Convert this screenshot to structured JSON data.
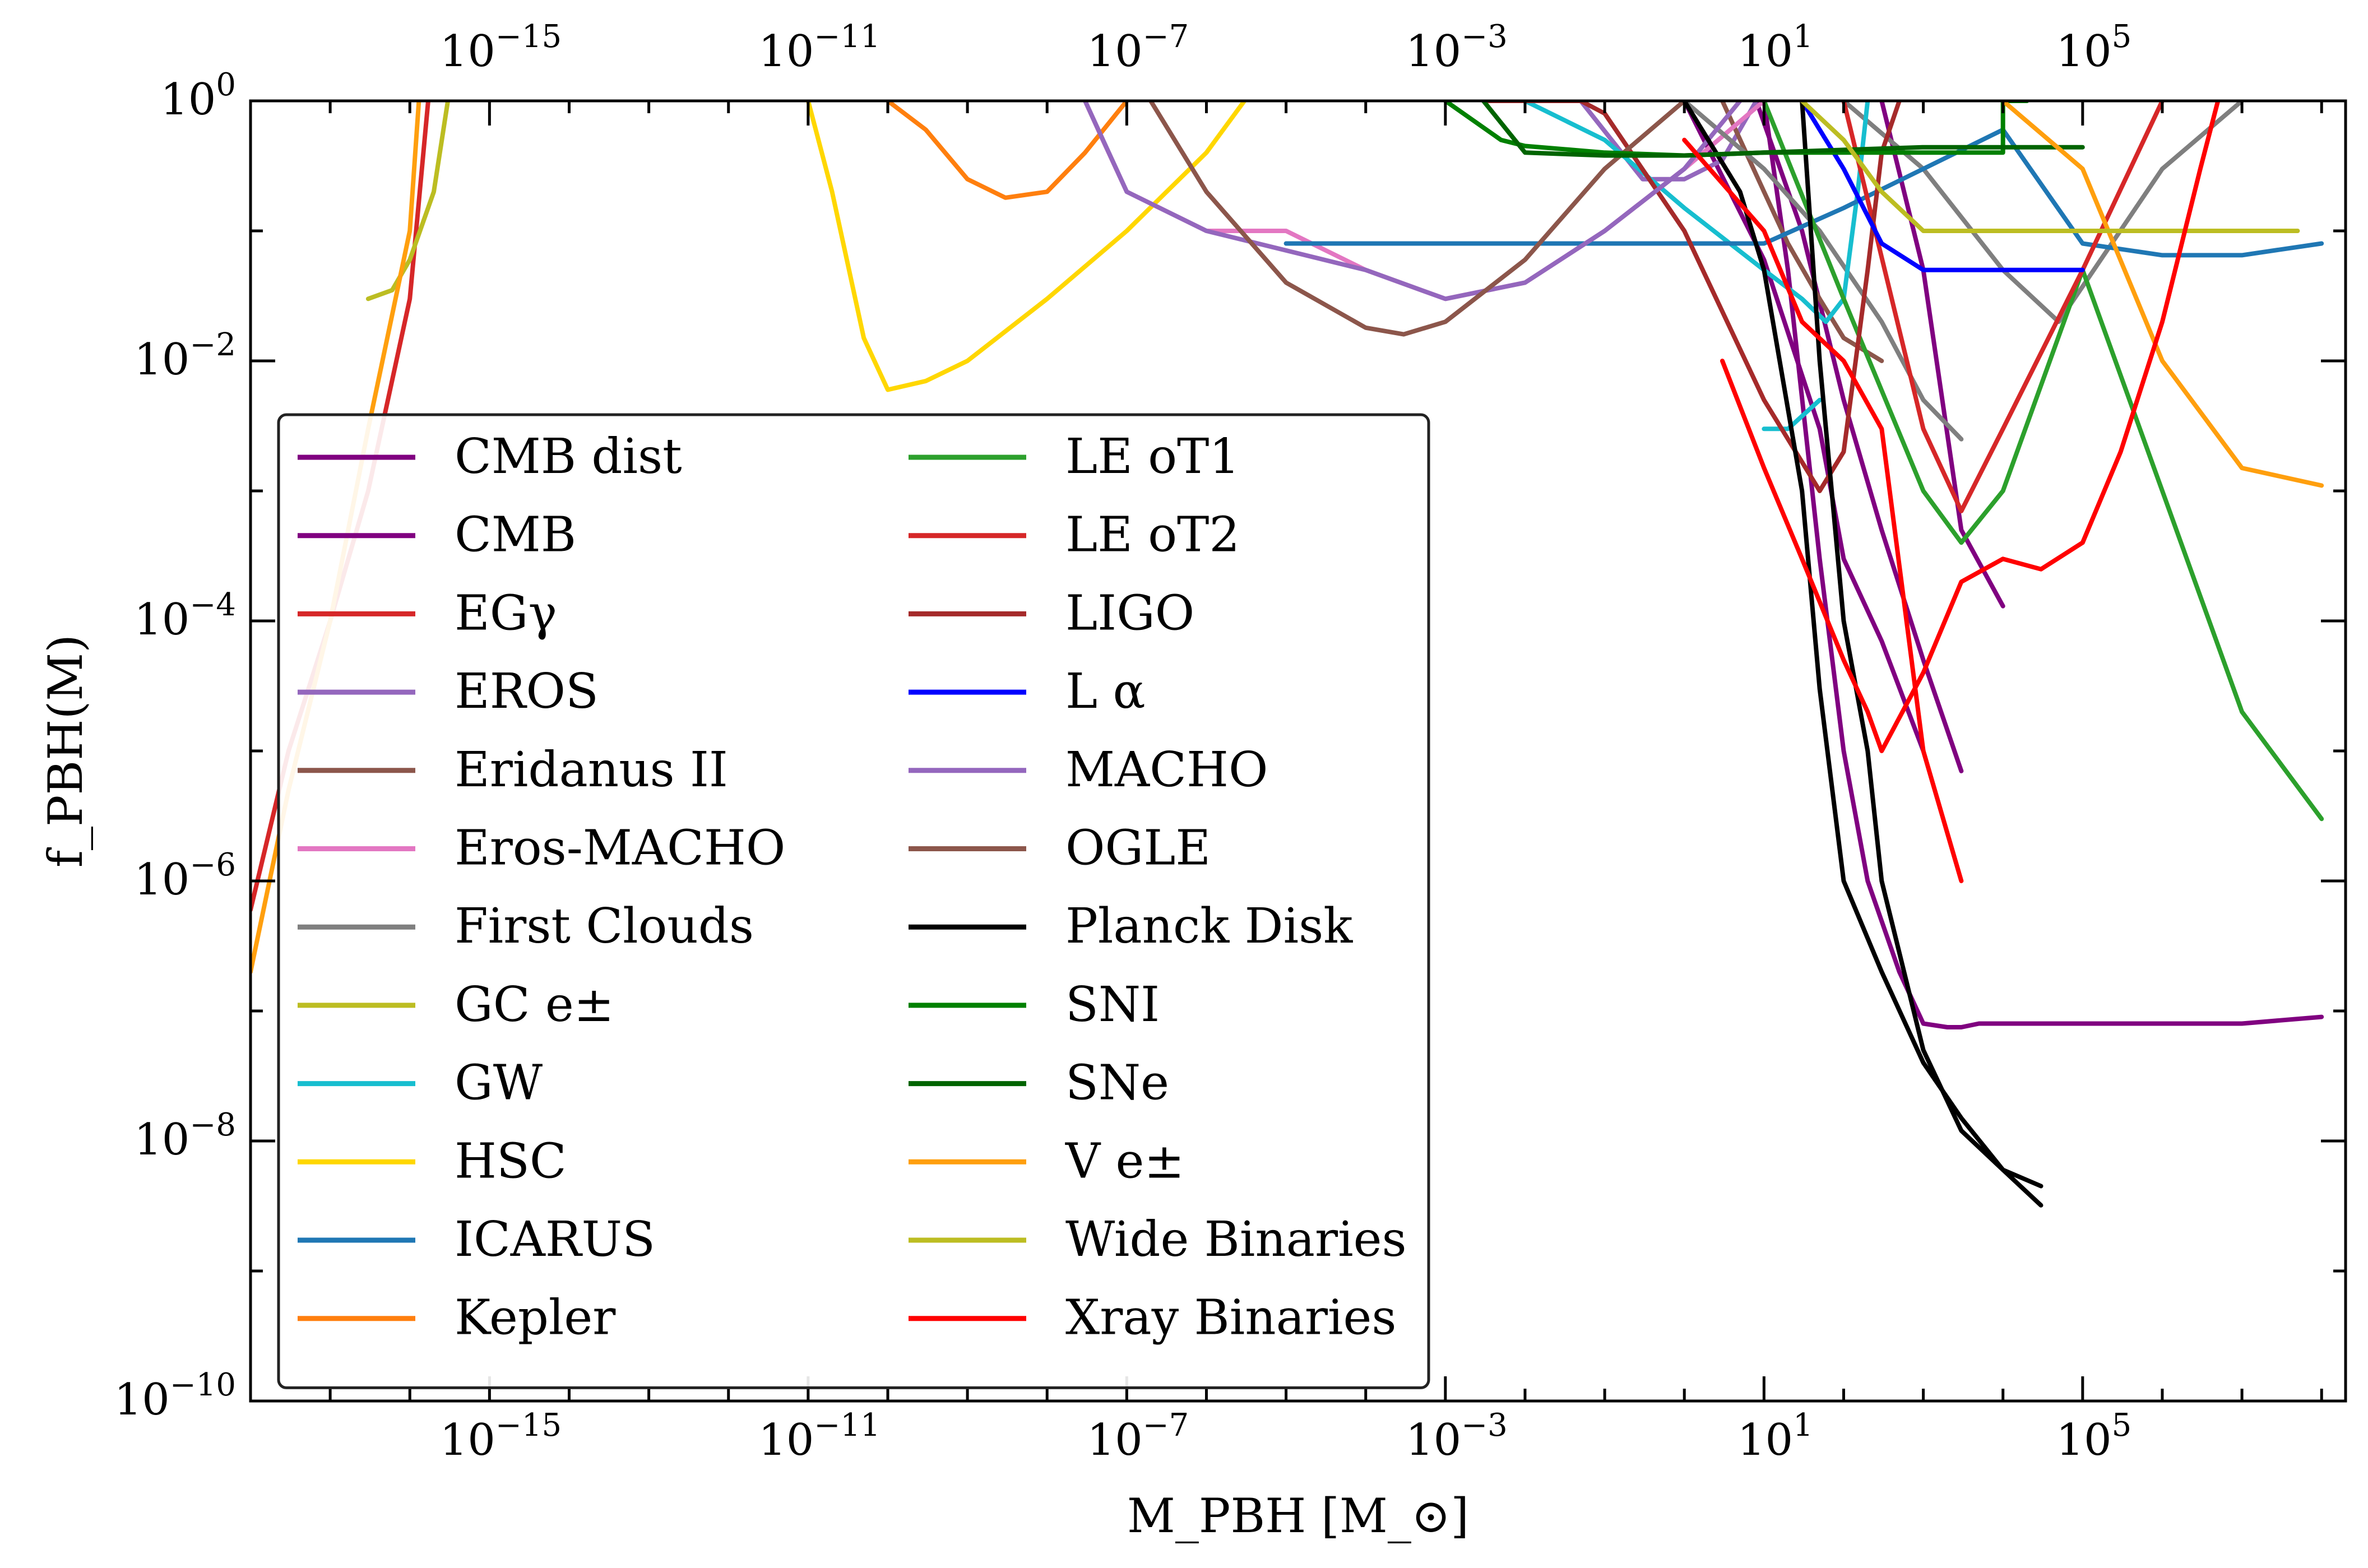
{
  "chart_data": {
    "type": "line",
    "xscale": "log",
    "yscale": "log",
    "xlim": [
      1e-18,
      200000000.0
    ],
    "ylim": [
      1e-10,
      1
    ],
    "xlabel": "M_PBH [M_⊙]",
    "ylabel": "f_PBH(M)",
    "xticks": [
      {
        "value": 1e-15,
        "base": "10",
        "exp": "−15"
      },
      {
        "value": 1e-11,
        "base": "10",
        "exp": "−11"
      },
      {
        "value": 1e-07,
        "base": "10",
        "exp": "−7"
      },
      {
        "value": 0.001,
        "base": "10",
        "exp": "−3"
      },
      {
        "value": 10,
        "base": "10",
        "exp": "1"
      },
      {
        "value": 100000.0,
        "base": "10",
        "exp": "5"
      }
    ],
    "yticks": [
      {
        "value": 1,
        "base": "10",
        "exp": "0"
      },
      {
        "value": 0.01,
        "base": "10",
        "exp": "−2"
      },
      {
        "value": 0.0001,
        "base": "10",
        "exp": "−4"
      },
      {
        "value": 1e-06,
        "base": "10",
        "exp": "−6"
      },
      {
        "value": 1e-08,
        "base": "10",
        "exp": "−8"
      },
      {
        "value": 1e-10,
        "base": "10",
        "exp": "−10"
      }
    ],
    "legend": {
      "placement": "lower-left",
      "columns": 2
    },
    "series": [
      {
        "name": "CMB dist",
        "color": "#800080",
        "x": [
          1,
          10,
          50,
          100,
          300,
          1000
        ],
        "y": [
          1,
          0.06,
          0.003,
          0.0003,
          7e-05,
          1e-05
        ]
      },
      {
        "name": "CMB dist",
        "color": "#800080",
        "x": [
          8,
          30,
          100,
          300,
          1000,
          3000
        ],
        "y": [
          1,
          0.1,
          0.005,
          0.0005,
          5e-05,
          7e-06
        ]
      },
      {
        "name": "CMB",
        "color": "#800080",
        "x": [
          10,
          20,
          50,
          100,
          200,
          500,
          1000,
          2000,
          3000,
          5000,
          10000,
          100000,
          1000000,
          10000000,
          100000000
        ],
        "y": [
          1,
          0.05,
          0.0003,
          1e-05,
          1e-06,
          2e-07,
          8e-08,
          7.5e-08,
          7.5e-08,
          8e-08,
          8e-08,
          8e-08,
          8e-08,
          8e-08,
          9e-08
        ]
      },
      {
        "name": "CMB",
        "color": "#800080",
        "x": [
          300,
          1000,
          3000,
          10000
        ],
        "y": [
          1,
          0.05,
          0.0005,
          0.00013
        ]
      },
      {
        "name": "EGγ",
        "color": "#d62728",
        "x": [
          1e-18,
          3e-18,
          1e-17,
          3e-17,
          1e-16,
          1.7e-16
        ],
        "y": [
          6e-07,
          1e-05,
          0.0001,
          0.001,
          0.03,
          1
        ]
      },
      {
        "name": "EROS",
        "color": "#9467bd",
        "x": [
          0.05,
          0.3,
          1,
          3,
          8
        ],
        "y": [
          1,
          0.25,
          0.25,
          0.35,
          1
        ]
      },
      {
        "name": "Eridanus II",
        "color": "#8c564b",
        "x": [
          3,
          10,
          20,
          50,
          100,
          300
        ],
        "y": [
          1,
          0.2,
          0.08,
          0.03,
          0.015,
          0.01
        ]
      },
      {
        "name": "Eros-MACHO",
        "color": "#e377c2",
        "x": [
          3e-08,
          5e-08,
          1e-07,
          1e-06,
          1e-05,
          0.0001,
          0.001,
          0.01,
          0.1,
          1,
          10
        ],
        "y": [
          1,
          0.5,
          0.2,
          0.1,
          0.1,
          0.05,
          0.03,
          0.04,
          0.1,
          0.3,
          1
        ]
      },
      {
        "name": "First Clouds",
        "color": "#7f7f7f",
        "x": [
          1,
          10,
          50,
          300,
          1000,
          3000
        ],
        "y": [
          1,
          0.3,
          0.1,
          0.02,
          0.005,
          0.0025
        ]
      },
      {
        "name": "First Clouds",
        "color": "#7f7f7f",
        "x": [
          100,
          1000,
          10000,
          50000,
          1000000,
          10000000
        ],
        "y": [
          1,
          0.3,
          0.05,
          0.02,
          0.3,
          1
        ]
      },
      {
        "name": "GC e±",
        "color": "#bcbd22",
        "x": [
          3e-17,
          6e-17,
          1e-16,
          2e-16,
          3e-16
        ],
        "y": [
          0.03,
          0.035,
          0.06,
          0.2,
          1
        ]
      },
      {
        "name": "GW",
        "color": "#17becf",
        "x": [
          0.01,
          0.1,
          1,
          10,
          30,
          60,
          100,
          150,
          200
        ],
        "y": [
          1,
          0.5,
          0.15,
          0.05,
          0.03,
          0.02,
          0.03,
          0.2,
          1
        ]
      },
      {
        "name": "GW",
        "color": "#17becf",
        "x": [
          10,
          20,
          50
        ],
        "y": [
          0.003,
          0.003,
          0.005
        ]
      },
      {
        "name": "HSC",
        "color": "#ffd700",
        "x": [
          1e-11,
          2e-11,
          5e-11,
          1e-10,
          3e-10,
          1e-09,
          1e-08,
          1e-07,
          1e-06,
          3e-06
        ],
        "y": [
          1,
          0.2,
          0.015,
          0.006,
          0.007,
          0.01,
          0.03,
          0.1,
          0.4,
          1
        ]
      },
      {
        "name": "ICARUS",
        "color": "#1f77b4",
        "x": [
          1e-05,
          0.001,
          0.1,
          10,
          100,
          1000,
          10000,
          100000,
          1000000,
          10000000,
          100000000
        ],
        "y": [
          0.08,
          0.08,
          0.08,
          0.08,
          0.15,
          0.3,
          0.6,
          0.08,
          0.065,
          0.065,
          0.08
        ]
      },
      {
        "name": "Kepler",
        "color": "#ff7f0e",
        "x": [
          1e-10,
          3e-10,
          1e-09,
          3e-09,
          1e-08,
          3e-08,
          1e-07
        ],
        "y": [
          1,
          0.6,
          0.25,
          0.18,
          0.2,
          0.4,
          1
        ]
      },
      {
        "name": "LE oT1",
        "color": "#2ca02c",
        "x": [
          10,
          100,
          1000,
          3000,
          10000,
          100000,
          1000000,
          10000000,
          100000000
        ],
        "y": [
          1,
          0.03,
          0.001,
          0.0004,
          0.001,
          0.05,
          0.001,
          2e-05,
          3e-06
        ]
      },
      {
        "name": "LE oT2",
        "color": "#d62728",
        "x": [
          100,
          1000,
          3000,
          10000,
          100000,
          1000000
        ],
        "y": [
          1,
          0.003,
          0.0007,
          0.003,
          0.05,
          1
        ]
      },
      {
        "name": "LIGO",
        "color": "#a52a2a",
        "x": [
          0.003,
          0.01,
          0.05,
          0.1,
          1,
          10,
          50,
          100,
          200,
          300,
          500
        ],
        "y": [
          1,
          1,
          1,
          0.8,
          0.1,
          0.005,
          0.001,
          0.002,
          0.05,
          0.4,
          1
        ]
      },
      {
        "name": "L α",
        "color": "#0000ff",
        "x": [
          30,
          100,
          300,
          1000,
          100000
        ],
        "y": [
          1,
          0.3,
          0.08,
          0.05,
          0.05
        ]
      },
      {
        "name": "MACHO",
        "color": "#9467bd",
        "x": [
          3e-08,
          1e-07,
          1e-06,
          0.0001,
          0.001,
          0.01,
          0.1,
          1,
          5
        ],
        "y": [
          1,
          0.2,
          0.1,
          0.05,
          0.03,
          0.04,
          0.1,
          0.3,
          1
        ]
      },
      {
        "name": "OGLE",
        "color": "#8c564b",
        "x": [
          2e-07,
          1e-06,
          1e-05,
          0.0001,
          0.0003,
          0.001,
          0.01,
          0.1,
          1
        ],
        "y": [
          1,
          0.2,
          0.04,
          0.018,
          0.016,
          0.02,
          0.06,
          0.3,
          1
        ]
      },
      {
        "name": "Planck Disk",
        "color": "#000000",
        "x": [
          1,
          5,
          10,
          30,
          50,
          100,
          300,
          1000,
          3000,
          10000,
          30000
        ],
        "y": [
          1,
          0.2,
          0.05,
          0.001,
          3e-05,
          1e-06,
          2e-07,
          4e-08,
          1.5e-08,
          6e-09,
          3.2e-09
        ]
      },
      {
        "name": "Planck Disk",
        "color": "#000000",
        "x": [
          30,
          50,
          100,
          200,
          300,
          1000,
          3000,
          10000,
          30000
        ],
        "y": [
          1,
          0.01,
          0.0001,
          1e-05,
          1e-06,
          5e-08,
          1.2e-08,
          6e-09,
          4.5e-09
        ]
      },
      {
        "name": "SNI",
        "color": "#008000",
        "x": [
          0.001,
          0.005,
          0.01,
          0.1,
          1,
          10,
          100,
          1000,
          10000,
          10000,
          20000
        ],
        "y": [
          1,
          0.5,
          0.45,
          0.4,
          0.38,
          0.4,
          0.4,
          0.4,
          0.4,
          1,
          1
        ]
      },
      {
        "name": "SNe",
        "color": "#006400",
        "x": [
          0.003,
          0.01,
          0.1,
          1,
          10,
          100,
          1000,
          3000,
          6000,
          10000,
          50000,
          100000
        ],
        "y": [
          1,
          0.4,
          0.38,
          0.38,
          0.4,
          0.42,
          0.44,
          0.44,
          0.44,
          0.44,
          0.44,
          0.44
        ]
      },
      {
        "name": "V e±",
        "color": "#ff9f0e",
        "x": [
          1e-18,
          3e-18,
          1e-17,
          3e-17,
          1e-16,
          1.3e-16
        ],
        "y": [
          2e-07,
          5e-06,
          0.0001,
          0.003,
          0.1,
          1
        ]
      },
      {
        "name": "V e±",
        "color": "#ff9f0e",
        "x": [
          10000,
          100000,
          1000000,
          10000000,
          100000000
        ],
        "y": [
          1,
          0.3,
          0.01,
          0.0015,
          0.0011
        ]
      },
      {
        "name": "Wide Binaries",
        "color": "#bcbd22",
        "x": [
          30,
          100,
          300,
          1000,
          10000,
          100000,
          1000000,
          10000000,
          50000000
        ],
        "y": [
          1,
          0.5,
          0.2,
          0.1,
          0.1,
          0.1,
          0.1,
          0.1,
          0.1
        ]
      },
      {
        "name": "Xray Binaries",
        "color": "#ff0000",
        "x": [
          3,
          10,
          30,
          100,
          200,
          300,
          1000,
          3000,
          10000,
          30000,
          100000,
          300000,
          1000000,
          3000000,
          5000000
        ],
        "y": [
          0.01,
          0.0015,
          0.0003,
          5e-05,
          2e-05,
          1e-05,
          4e-05,
          0.0002,
          0.0003,
          0.00025,
          0.0004,
          0.002,
          0.02,
          0.3,
          1
        ]
      },
      {
        "name": "Xray Binaries",
        "color": "#ff0000",
        "x": [
          1,
          10,
          30,
          100,
          300,
          1000,
          3000
        ],
        "y": [
          0.5,
          0.1,
          0.02,
          0.01,
          0.003,
          1e-05,
          1e-06
        ]
      }
    ]
  }
}
